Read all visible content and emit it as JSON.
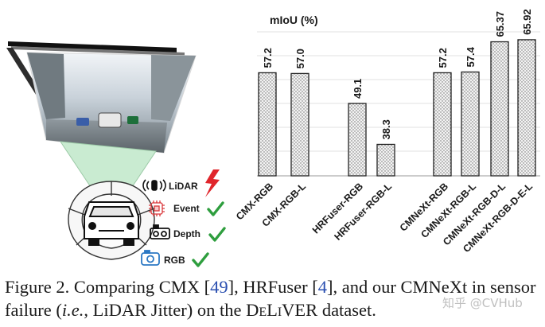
{
  "chart_data": {
    "type": "bar",
    "title": "mIoU (%)",
    "categories": [
      "CMX-RGB",
      "CMX-RGB-L",
      "HRFuser-RGB",
      "HRFuser-RGB-L",
      "CMNeXt-RGB",
      "CMNeXt-RGB-L",
      "CMNeXt-RGB-D-L",
      "CMNeXt-RGB-D-E-L"
    ],
    "values": [
      57.2,
      57.0,
      49.1,
      38.3,
      57.2,
      57.4,
      65.37,
      65.92
    ],
    "value_labels": [
      "57.2",
      "57.0",
      "49.1",
      "38.3",
      "57.2",
      "57.4",
      "65.37",
      "65.92"
    ],
    "groups": [
      {
        "name": "CMX",
        "indices": [
          0,
          1
        ]
      },
      {
        "name": "HRFuser",
        "indices": [
          2,
          3
        ]
      },
      {
        "name": "CMNeXt",
        "indices": [
          4,
          5,
          6,
          7
        ]
      }
    ],
    "ylim": [
      30,
      68
    ],
    "grid": true,
    "bar_fill": "dotted-gray"
  },
  "sensors": [
    {
      "name": "LiDAR",
      "icon": "lidar-icon",
      "status": "failed",
      "status_icon": "lightning-icon"
    },
    {
      "name": "Event",
      "icon": "event-camera-icon",
      "status": "ok",
      "status_icon": "checkmark-icon"
    },
    {
      "name": "Depth",
      "icon": "depth-camera-icon",
      "status": "ok",
      "status_icon": "checkmark-icon"
    },
    {
      "name": "RGB",
      "icon": "rgb-camera-icon",
      "status": "ok",
      "status_icon": "checkmark-icon"
    }
  ],
  "caption": {
    "p1": "Figure 2. Comparing CMX [",
    "ref1": "49",
    "p2": "], HRFuser [",
    "ref2": "4",
    "p3": "], and our CMNeXt in sensor failure (",
    "ie": "i.e.",
    "p4": ", LiDAR Jitter) on the ",
    "dataset": "DeLiVER",
    "p5": " dataset."
  },
  "watermark": "知乎 @CVHub",
  "colors": {
    "bar_dot": "#6a6a6a",
    "check_green": "#2e9e3e",
    "failure_red": "#e0252b",
    "event_red": "#d9373a",
    "rgb_blue": "#2b78c4",
    "cone_green": "#c9ebd1",
    "ref_blue": "#2a4fb0"
  }
}
